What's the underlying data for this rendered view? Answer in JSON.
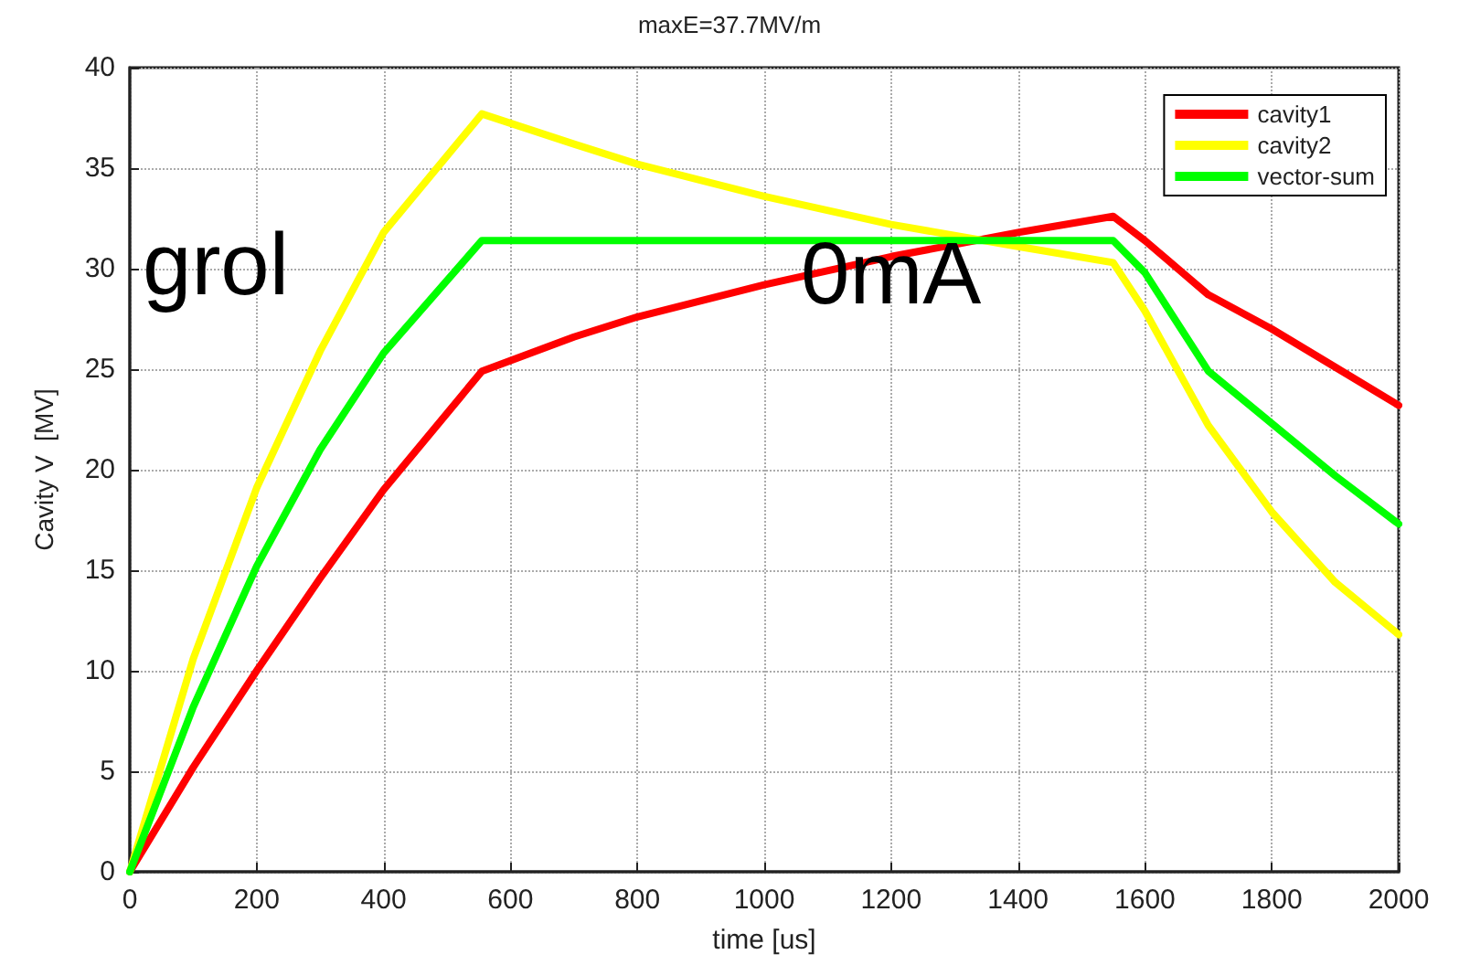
{
  "chart_data": {
    "type": "line",
    "title": "maxE=37.7MV/m",
    "xlabel": "time [us]",
    "ylabel": "Cavity V  [MV]",
    "xlim": [
      0,
      2000
    ],
    "xticks": [
      0,
      200,
      400,
      600,
      800,
      1000,
      1200,
      1400,
      1600,
      1800,
      2000
    ],
    "ylim": [
      0,
      40
    ],
    "yticks": [
      0,
      5,
      10,
      15,
      20,
      25,
      30,
      35,
      40
    ],
    "grid": true,
    "legend": "top right",
    "marker": "none",
    "line_style": "solid",
    "annotations": [
      "grol",
      "0mA"
    ],
    "series": [
      {
        "name": "cavity1",
        "color": "#ff0000",
        "x": [
          0,
          100,
          200,
          300,
          400,
          555,
          700,
          800,
          1000,
          1200,
          1400,
          1550,
          1600,
          1700,
          1800,
          1900,
          2000
        ],
        "values": [
          0,
          5.2,
          10,
          14.6,
          19,
          24.9,
          26.6,
          27.6,
          29.2,
          30.6,
          31.8,
          32.6,
          31.4,
          28.7,
          27,
          25.1,
          23.2
        ]
      },
      {
        "name": "cavity2",
        "color": "#ffff00",
        "x": [
          0,
          100,
          200,
          300,
          400,
          555,
          700,
          800,
          1000,
          1200,
          1400,
          1550,
          1600,
          1700,
          1800,
          1900,
          2000
        ],
        "values": [
          0,
          10.6,
          19.1,
          25.9,
          31.8,
          37.7,
          36.2,
          35.2,
          33.6,
          32.2,
          31.1,
          30.3,
          27.9,
          22.2,
          17.9,
          14.4,
          11.8
        ]
      },
      {
        "name": "vector-sum",
        "color": "#00ff00",
        "x": [
          0,
          100,
          200,
          300,
          400,
          555,
          800,
          1000,
          1200,
          1400,
          1550,
          1600,
          1700,
          1800,
          1900,
          2000
        ],
        "values": [
          0,
          8.2,
          15.2,
          21,
          25.8,
          31.4,
          31.4,
          31.4,
          31.4,
          31.4,
          31.4,
          29.8,
          24.9,
          22.3,
          19.7,
          17.3
        ]
      }
    ]
  }
}
